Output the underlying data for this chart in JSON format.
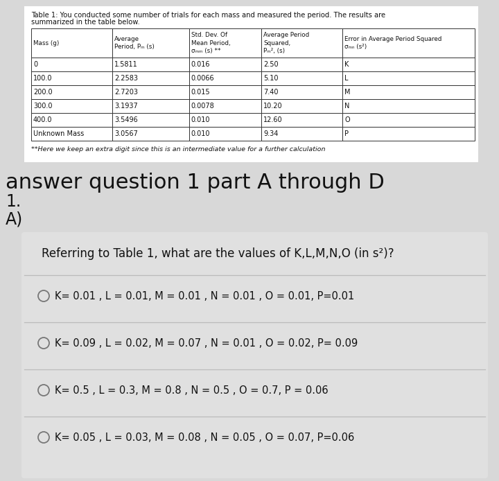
{
  "table_title_line1": "Table 1: You conducted some number of trials for each mass and measured the period. The results are",
  "table_title_line2": "summarized in the table below.",
  "col_headers": [
    "Mass (g)",
    "Average\nPeriod, Pₘ (s)",
    "Std. Dev. Of\nMean Period,\nσₘₘ (s) **",
    "Average Period\nSquared,\nPₘ², (s)",
    "Error in Average Period Squared\nσₘₙ (s²)"
  ],
  "table_rows": [
    [
      "0",
      "1.5811",
      "0.016",
      "2.50",
      "K"
    ],
    [
      "100.0",
      "2.2583",
      "0.0066",
      "5.10",
      "L"
    ],
    [
      "200.0",
      "2.7203",
      "0.015",
      "7.40",
      "M"
    ],
    [
      "300.0",
      "3.1937",
      "0.0078",
      "10.20",
      "N"
    ],
    [
      "400.0",
      "3.5496",
      "0.010",
      "12.60",
      "O"
    ],
    [
      "Unknown Mass",
      "3.0567",
      "0.010",
      "9.34",
      "P"
    ]
  ],
  "footnote": "**Here we keep an extra digit since this is an intermediate value for a further calculation",
  "section_line1": "answer question 1 part A through D",
  "section_line2": "1.",
  "section_line3": "A)",
  "question": "Referring to Table 1, what are the values of K,L,M,N,O (in s²)?",
  "choices": [
    "K= 0.01 , L = 0.01, M = 0.01 , N = 0.01 , O = 0.01, P=0.01",
    "K= 0.09 , L = 0.02, M = 0.07 , N = 0.01 , O = 0.02, P= 0.09",
    "K= 0.5 , L = 0.3, M = 0.8 , N = 0.5 , O = 0.7, P = 0.06",
    "K= 0.05 , L = 0.03, M = 0.08 , N = 0.05 , O = 0.07, P=0.06"
  ],
  "outer_bg": "#d8d8d8",
  "white_bg": "#ffffff",
  "answer_bg": "#e0e0e0",
  "table_border": "#333333",
  "text_dark": "#111111",
  "line_color": "#bbbbbb"
}
